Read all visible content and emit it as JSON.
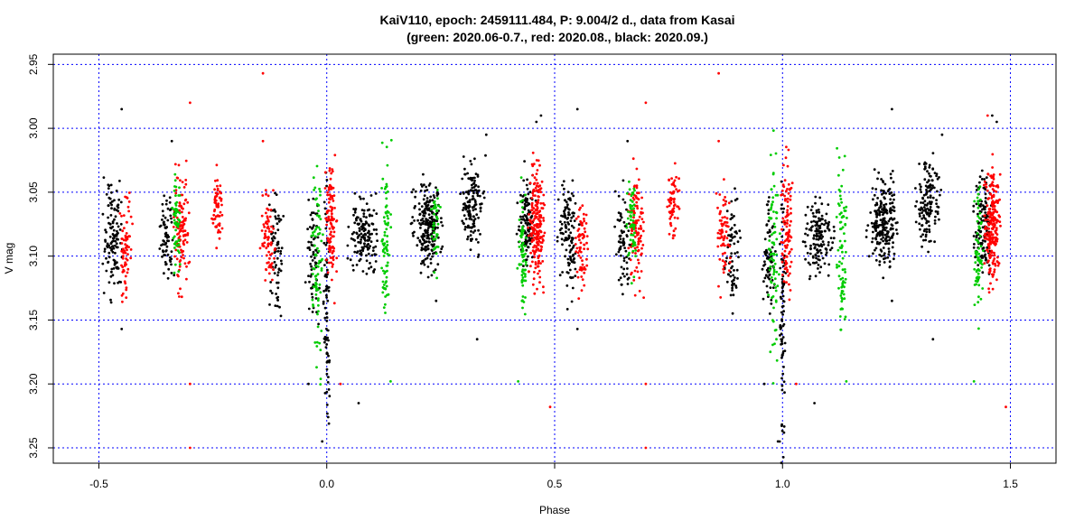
{
  "chart_data": {
    "type": "scatter",
    "title_line1": "KaiV110, epoch: 2459111.484, P: 9.004/2 d., data from Kasai",
    "title_line2": "(green: 2020.06-0.7., red: 2020.08., black: 2020.09.)",
    "xlabel": "Phase",
    "ylabel": "V mag",
    "xlim": [
      -0.6,
      1.6
    ],
    "ylim": [
      2.942,
      3.262
    ],
    "y_inverted": true,
    "x_ticks": [
      -0.5,
      0.0,
      0.5,
      1.0,
      1.5
    ],
    "x_tick_labels": [
      "-0.5",
      "0.0",
      "0.5",
      "1.0",
      "1.5"
    ],
    "y_ticks": [
      2.95,
      3.0,
      3.05,
      3.1,
      3.15,
      3.2,
      3.25
    ],
    "y_tick_labels": [
      "2.95",
      "3.00",
      "3.05",
      "3.10",
      "3.15",
      "3.20",
      "3.25"
    ],
    "grid": true,
    "colors": {
      "grid": "#0000ff",
      "black": "#000000",
      "red": "#ff0000",
      "green": "#00cc00"
    },
    "series": [
      {
        "name": "2020.09.",
        "color": "#000000",
        "clusters": [
          {
            "x": -0.47,
            "y": 3.085,
            "sx": 0.01,
            "sy": 0.022,
            "n": 120
          },
          {
            "x": -0.35,
            "y": 3.085,
            "sx": 0.008,
            "sy": 0.018,
            "n": 70
          },
          {
            "x": -0.11,
            "y": 3.095,
            "sx": 0.008,
            "sy": 0.022,
            "n": 70
          },
          {
            "x": -0.03,
            "y": 3.1,
            "sx": 0.007,
            "sy": 0.022,
            "n": 70
          },
          {
            "x": 0.0,
            "y": 3.15,
            "sx": 0.003,
            "sy": 0.045,
            "n": 80
          },
          {
            "x": 0.08,
            "y": 3.085,
            "sx": 0.015,
            "sy": 0.014,
            "n": 150
          },
          {
            "x": 0.22,
            "y": 3.075,
            "sx": 0.015,
            "sy": 0.018,
            "n": 220
          },
          {
            "x": 0.32,
            "y": 3.058,
            "sx": 0.012,
            "sy": 0.017,
            "n": 140
          },
          {
            "x": 0.44,
            "y": 3.075,
            "sx": 0.01,
            "sy": 0.02,
            "n": 120
          },
          {
            "x": 0.53,
            "y": 3.085,
            "sx": 0.01,
            "sy": 0.022,
            "n": 120
          },
          {
            "x": 0.65,
            "y": 3.085,
            "sx": 0.008,
            "sy": 0.018,
            "n": 70
          },
          {
            "x": 0.89,
            "y": 3.095,
            "sx": 0.008,
            "sy": 0.022,
            "n": 70
          },
          {
            "x": 0.97,
            "y": 3.1,
            "sx": 0.007,
            "sy": 0.022,
            "n": 70
          },
          {
            "x": 1.0,
            "y": 3.15,
            "sx": 0.003,
            "sy": 0.045,
            "n": 80
          },
          {
            "x": 1.08,
            "y": 3.085,
            "sx": 0.015,
            "sy": 0.014,
            "n": 150
          },
          {
            "x": 1.22,
            "y": 3.075,
            "sx": 0.015,
            "sy": 0.018,
            "n": 220
          },
          {
            "x": 1.32,
            "y": 3.058,
            "sx": 0.012,
            "sy": 0.017,
            "n": 140
          },
          {
            "x": 1.44,
            "y": 3.075,
            "sx": 0.01,
            "sy": 0.02,
            "n": 120
          }
        ],
        "outliers": [
          [
            -0.45,
            2.985
          ],
          [
            -0.45,
            3.157
          ],
          [
            -0.34,
            3.01
          ],
          [
            -0.04,
            3.2
          ],
          [
            0.07,
            3.215
          ],
          [
            0.24,
            3.135
          ],
          [
            0.33,
            3.165
          ],
          [
            0.35,
            3.005
          ],
          [
            0.46,
            2.995
          ],
          [
            0.47,
            2.99
          ],
          [
            0.55,
            2.985
          ],
          [
            0.55,
            3.157
          ],
          [
            0.66,
            3.01
          ],
          [
            0.96,
            3.2
          ],
          [
            1.07,
            3.215
          ],
          [
            1.24,
            2.985
          ],
          [
            1.24,
            3.135
          ],
          [
            1.33,
            3.165
          ],
          [
            1.35,
            3.005
          ],
          [
            1.46,
            2.99
          ],
          [
            1.47,
            2.995
          ],
          [
            -0.01,
            3.245
          ],
          [
            0.99,
            3.245
          ]
        ]
      },
      {
        "name": "2020.08.",
        "color": "#ff0000",
        "clusters": [
          {
            "x": -0.44,
            "y": 3.092,
            "sx": 0.006,
            "sy": 0.018,
            "n": 70
          },
          {
            "x": -0.32,
            "y": 3.08,
            "sx": 0.008,
            "sy": 0.022,
            "n": 110
          },
          {
            "x": -0.24,
            "y": 3.06,
            "sx": 0.006,
            "sy": 0.013,
            "n": 60
          },
          {
            "x": -0.13,
            "y": 3.085,
            "sx": 0.007,
            "sy": 0.02,
            "n": 70
          },
          {
            "x": 0.01,
            "y": 3.075,
            "sx": 0.006,
            "sy": 0.025,
            "n": 100
          },
          {
            "x": 0.46,
            "y": 3.075,
            "sx": 0.008,
            "sy": 0.022,
            "n": 210
          },
          {
            "x": 0.56,
            "y": 3.092,
            "sx": 0.006,
            "sy": 0.018,
            "n": 70
          },
          {
            "x": 0.68,
            "y": 3.08,
            "sx": 0.008,
            "sy": 0.022,
            "n": 110
          },
          {
            "x": 0.76,
            "y": 3.06,
            "sx": 0.006,
            "sy": 0.013,
            "n": 60
          },
          {
            "x": 0.87,
            "y": 3.085,
            "sx": 0.007,
            "sy": 0.02,
            "n": 70
          },
          {
            "x": 1.01,
            "y": 3.075,
            "sx": 0.006,
            "sy": 0.025,
            "n": 100
          },
          {
            "x": 1.46,
            "y": 3.075,
            "sx": 0.008,
            "sy": 0.022,
            "n": 210
          }
        ],
        "outliers": [
          [
            -0.14,
            2.957
          ],
          [
            -0.14,
            3.01
          ],
          [
            -0.3,
            2.98
          ],
          [
            -0.3,
            3.2
          ],
          [
            -0.3,
            3.25
          ],
          [
            0.03,
            3.2
          ],
          [
            0.49,
            3.218
          ],
          [
            0.86,
            2.957
          ],
          [
            0.86,
            3.01
          ],
          [
            0.7,
            2.98
          ],
          [
            0.7,
            3.2
          ],
          [
            0.7,
            3.25
          ],
          [
            1.03,
            3.2
          ],
          [
            1.49,
            3.218
          ],
          [
            1.45,
            2.99
          ]
        ]
      },
      {
        "name": "2020.06-0.7.",
        "color": "#00cc00",
        "clusters": [
          {
            "x": -0.33,
            "y": 3.075,
            "sx": 0.005,
            "sy": 0.018,
            "n": 60
          },
          {
            "x": -0.02,
            "y": 3.1,
            "sx": 0.006,
            "sy": 0.04,
            "n": 80
          },
          {
            "x": 0.13,
            "y": 3.085,
            "sx": 0.005,
            "sy": 0.035,
            "n": 80
          },
          {
            "x": 0.24,
            "y": 3.08,
            "sx": 0.005,
            "sy": 0.02,
            "n": 40
          },
          {
            "x": 0.43,
            "y": 3.1,
            "sx": 0.005,
            "sy": 0.025,
            "n": 70
          },
          {
            "x": 0.67,
            "y": 3.075,
            "sx": 0.005,
            "sy": 0.018,
            "n": 60
          },
          {
            "x": 0.98,
            "y": 3.1,
            "sx": 0.006,
            "sy": 0.04,
            "n": 80
          },
          {
            "x": 1.13,
            "y": 3.085,
            "sx": 0.005,
            "sy": 0.035,
            "n": 80
          },
          {
            "x": 1.43,
            "y": 3.1,
            "sx": 0.005,
            "sy": 0.025,
            "n": 70
          }
        ],
        "outliers": [
          [
            0.14,
            3.198
          ],
          [
            0.42,
            3.198
          ],
          [
            1.14,
            3.198
          ],
          [
            1.42,
            3.198
          ]
        ]
      }
    ]
  }
}
